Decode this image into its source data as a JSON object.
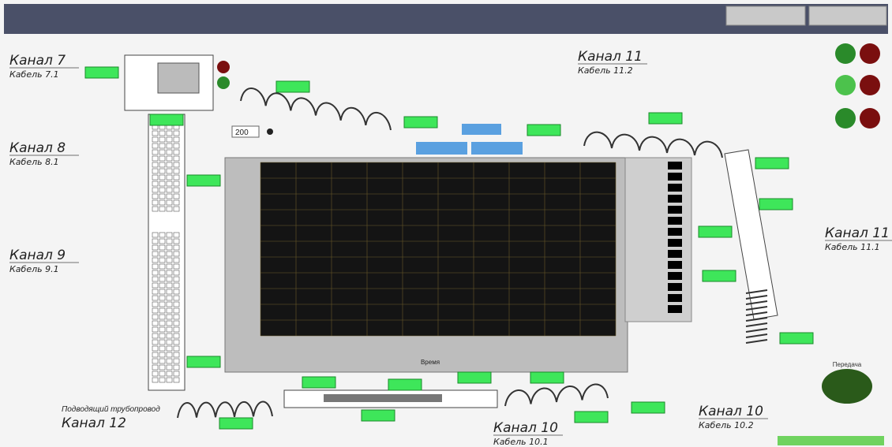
{
  "channels": [
    {
      "channel": "Канал 7",
      "cable": "Кабель 7.1"
    },
    {
      "channel": "Канал 8",
      "cable": "Кабель 8.1"
    },
    {
      "channel": "Канал 9",
      "cable": "Кабель 9.1"
    },
    {
      "channel": "Канал 11",
      "cable": "Кабель 11.2"
    },
    {
      "channel": "Канал 11",
      "cable": "Кабель 11.1"
    },
    {
      "channel": "Канал 10",
      "cable": "Кабель 10.2"
    },
    {
      "channel": "Канал 10",
      "cable": "Кабель 10.1"
    }
  ],
  "pipeline": {
    "caption": "Подводящий трубопровод",
    "channel": "Канал 12"
  },
  "plot": {
    "x_axis_label": "Время"
  },
  "setpoint": "200",
  "transfer_label": "Передача"
}
